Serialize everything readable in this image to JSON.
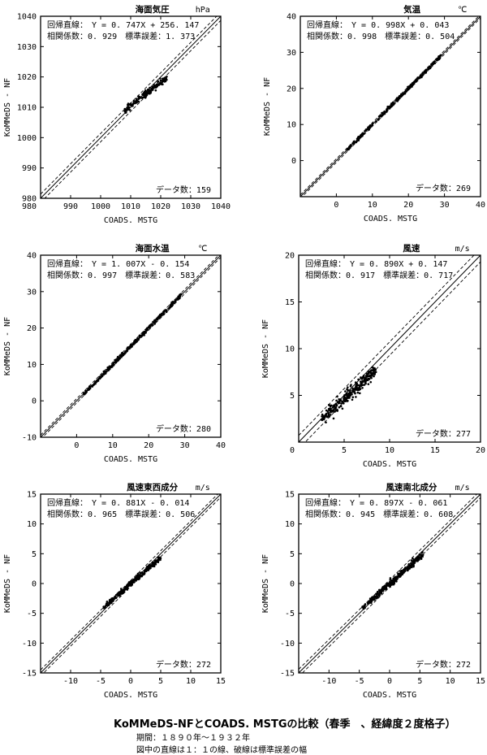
{
  "chart_data": [
    {
      "type": "scatter",
      "title": "海面気圧",
      "unit": "hPa",
      "xlabel": "COADS. MSTG",
      "ylabel": "KoMMeDS - NF",
      "xlim": [
        980,
        1040
      ],
      "ylim": [
        980,
        1040
      ],
      "xticks": [
        990,
        1000,
        1010,
        1020,
        1030,
        1040
      ],
      "yticks": [
        980,
        990,
        1000,
        1010,
        1020,
        1030,
        1040
      ],
      "xtick_labels": [
        "990",
        "1000",
        "1010",
        "1020",
        "1030",
        "1040"
      ],
      "ytick_labels": [
        "980",
        "990",
        "1000",
        "1010",
        "1020",
        "1030",
        "1040"
      ],
      "corner_label": "980",
      "regression_text": "回帰直線：　Y = 0. 747X + 256. 147",
      "stats_text": "相関係数：0. 929　標準誤差：1. 373",
      "count_text": "データ数：159",
      "slope": 0.747,
      "intercept": 256.147,
      "stderr": 1.373,
      "n": 159,
      "cluster": {
        "x_range": [
          1008,
          1022
        ],
        "spread": 1.37
      },
      "points": [
        [
          1008.5,
          1009.3
        ],
        [
          1009,
          1010.8
        ],
        [
          1010,
          1011.2
        ],
        [
          1011,
          1011.5
        ],
        [
          1012,
          1012.8
        ],
        [
          1013,
          1013.4
        ],
        [
          1014,
          1013.2
        ],
        [
          1015,
          1015.4
        ],
        [
          1016,
          1014.6
        ],
        [
          1017,
          1016.2
        ],
        [
          1018,
          1016.9
        ],
        [
          1019,
          1017.3
        ],
        [
          1020,
          1018.8
        ],
        [
          1021,
          1018.6
        ],
        [
          1022,
          1020.1
        ]
      ]
    },
    {
      "type": "scatter",
      "title": "気温",
      "unit": "℃",
      "xlabel": "COADS. MSTG",
      "ylabel": "KoMMeDS - NF",
      "xlim": [
        -10,
        40
      ],
      "ylim": [
        -10,
        40
      ],
      "xticks": [
        0,
        10,
        20,
        30,
        40
      ],
      "yticks": [
        0,
        10,
        20,
        30,
        40
      ],
      "xtick_labels": [
        "0",
        "10",
        "20",
        "30",
        "40"
      ],
      "ytick_labels": [
        "0",
        "10",
        "20",
        "30",
        "40"
      ],
      "corner_label": "",
      "regression_text": "回帰直線：　Y = 0. 998X + 0. 043",
      "stats_text": "相関係数：0. 998　標準誤差：0. 504",
      "count_text": "データ数：269",
      "slope": 0.998,
      "intercept": 0.043,
      "stderr": 0.504,
      "n": 269,
      "cluster": {
        "x_range": [
          3,
          29
        ],
        "spread": 0.6
      },
      "points": [
        [
          3,
          3.1
        ],
        [
          5,
          4.9
        ],
        [
          8,
          8.2
        ],
        [
          10,
          9.8
        ],
        [
          12,
          12.3
        ],
        [
          14,
          14
        ],
        [
          16,
          15.7
        ],
        [
          18,
          18.4
        ],
        [
          20,
          19.8
        ],
        [
          22,
          22.3
        ],
        [
          24,
          23.8
        ],
        [
          26,
          26.1
        ],
        [
          28,
          27.8
        ],
        [
          29,
          29.2
        ]
      ]
    },
    {
      "type": "scatter",
      "title": "海面水温",
      "unit": "℃",
      "xlabel": "COADS. MSTG",
      "ylabel": "KoMMeDS - NF",
      "xlim": [
        -10,
        40
      ],
      "ylim": [
        -10,
        40
      ],
      "xticks": [
        0,
        10,
        20,
        30,
        40
      ],
      "yticks": [
        -10,
        0,
        10,
        20,
        30,
        40
      ],
      "xtick_labels": [
        "0",
        "10",
        "20",
        "30",
        "40"
      ],
      "ytick_labels": [
        "-10",
        "0",
        "10",
        "20",
        "30",
        "40"
      ],
      "corner_label": "",
      "regression_text": "回帰直線：　Y = 1. 007X - 0. 154",
      "stats_text": "相関係数：0. 997　標準誤差：0. 583",
      "count_text": "データ数：280",
      "slope": 1.007,
      "intercept": -0.154,
      "stderr": 0.583,
      "n": 280,
      "cluster": {
        "x_range": [
          2,
          29
        ],
        "spread": 0.7
      },
      "points": [
        [
          2,
          2.1
        ],
        [
          5,
          4.8
        ],
        [
          8,
          8.1
        ],
        [
          10,
          9.9
        ],
        [
          12,
          12.4
        ],
        [
          14,
          13.7
        ],
        [
          16,
          16.3
        ],
        [
          18,
          17.8
        ],
        [
          20,
          20.2
        ],
        [
          22,
          21.8
        ],
        [
          24,
          24.3
        ],
        [
          26,
          25.9
        ],
        [
          28,
          28.2
        ],
        [
          29,
          29.3
        ]
      ]
    },
    {
      "type": "scatter",
      "title": "風速",
      "unit": "m/s",
      "xlabel": "COADS. MSTG",
      "ylabel": "KoMMeDS - NF",
      "xlim": [
        0,
        20
      ],
      "ylim": [
        0,
        20
      ],
      "xticks": [
        5,
        10,
        15,
        20
      ],
      "yticks": [
        5,
        10,
        15,
        20
      ],
      "xtick_labels": [
        "5",
        "10",
        "15",
        "20"
      ],
      "ytick_labels": [
        "5",
        "10",
        "15",
        "20"
      ],
      "corner_label": "0",
      "regression_text": "回帰直線：　Y = 0. 890X + 0. 147",
      "stats_text": "相関係数：0. 917　標準誤差：0. 717",
      "count_text": "データ数：277",
      "slope": 0.89,
      "intercept": 0.147,
      "stderr": 0.717,
      "n": 277,
      "cluster": {
        "x_range": [
          2.5,
          8.5
        ],
        "spread": 0.9
      },
      "points": [
        [
          2.5,
          2.4
        ],
        [
          3,
          2.9
        ],
        [
          3.5,
          3.3
        ],
        [
          4,
          3.6
        ],
        [
          4.5,
          4.2
        ],
        [
          5,
          4.8
        ],
        [
          5.5,
          5
        ],
        [
          6,
          5.4
        ],
        [
          6.5,
          6.1
        ],
        [
          7,
          6.5
        ],
        [
          7.5,
          7
        ],
        [
          8,
          7.3
        ]
      ]
    },
    {
      "type": "scatter",
      "title": "風速東西成分",
      "unit": "m/s",
      "xlabel": "COADS. MSTG",
      "ylabel": "KoMMeDS - NF",
      "xlim": [
        -15,
        15
      ],
      "ylim": [
        -15,
        15
      ],
      "xticks": [
        -10,
        -5,
        0,
        5,
        10,
        15
      ],
      "yticks": [
        -15,
        -10,
        -5,
        0,
        5,
        10,
        15
      ],
      "xtick_labels": [
        "-10",
        "-5",
        "0",
        "5",
        "10",
        "15"
      ],
      "ytick_labels": [
        "-15",
        "-10",
        "-5",
        "0",
        "5",
        "10",
        "15"
      ],
      "corner_label": "",
      "regression_text": "回帰直線：　Y = 0. 881X - 0. 014",
      "stats_text": "相関係数：0. 965　標準誤差：0. 506",
      "count_text": "データ数：272",
      "slope": 0.881,
      "intercept": -0.014,
      "stderr": 0.506,
      "n": 272,
      "cluster": {
        "x_range": [
          -4.5,
          5
        ],
        "spread": 0.6
      },
      "points": [
        [
          -4.5,
          -3.9
        ],
        [
          -3.5,
          -3.2
        ],
        [
          -2.5,
          -2.3
        ],
        [
          -1.5,
          -1.2
        ],
        [
          -0.5,
          -0.6
        ],
        [
          0,
          0.1
        ],
        [
          0.5,
          0.4
        ],
        [
          1.5,
          1.3
        ],
        [
          2.5,
          2.2
        ],
        [
          3.5,
          3.1
        ],
        [
          4.5,
          3.9
        ]
      ]
    },
    {
      "type": "scatter",
      "title": "風速南北成分",
      "unit": "m/s",
      "xlabel": "COADS. MSTG",
      "ylabel": "KoMMeDS - NF",
      "xlim": [
        -15,
        15
      ],
      "ylim": [
        -15,
        15
      ],
      "xticks": [
        -10,
        -5,
        0,
        5,
        10,
        15
      ],
      "yticks": [
        -15,
        -10,
        -5,
        0,
        5,
        10,
        15
      ],
      "xtick_labels": [
        "-10",
        "-5",
        "0",
        "5",
        "10",
        "15"
      ],
      "ytick_labels": [
        "-15",
        "-10",
        "-5",
        "0",
        "5",
        "10",
        "15"
      ],
      "corner_label": "",
      "regression_text": "回帰直線：　Y = 0. 897X - 0. 061",
      "stats_text": "相関係数：0. 945　標準誤差：0. 608",
      "count_text": "データ数：272",
      "slope": 0.897,
      "intercept": -0.061,
      "stderr": 0.608,
      "n": 272,
      "cluster": {
        "x_range": [
          -4.5,
          5.5
        ],
        "spread": 0.75
      },
      "points": [
        [
          -4.5,
          -4
        ],
        [
          -3.5,
          -3.3
        ],
        [
          -2.5,
          -2.1
        ],
        [
          -1.5,
          -1.4
        ],
        [
          -0.5,
          -0.4
        ],
        [
          0,
          -0.2
        ],
        [
          0.5,
          0.5
        ],
        [
          1.5,
          1.2
        ],
        [
          2.5,
          2.4
        ],
        [
          3.5,
          3.1
        ],
        [
          4.5,
          4.1
        ],
        [
          5.5,
          4.8
        ]
      ]
    }
  ],
  "caption": {
    "title": "KoMMeDS-NFとCOADS. MSTGの比較（春季　、経緯度２度格子）",
    "period": "期間：１８９０年〜１９３２年",
    "note": "図中の直線は１：１の線、破線は標準誤差の幅"
  }
}
